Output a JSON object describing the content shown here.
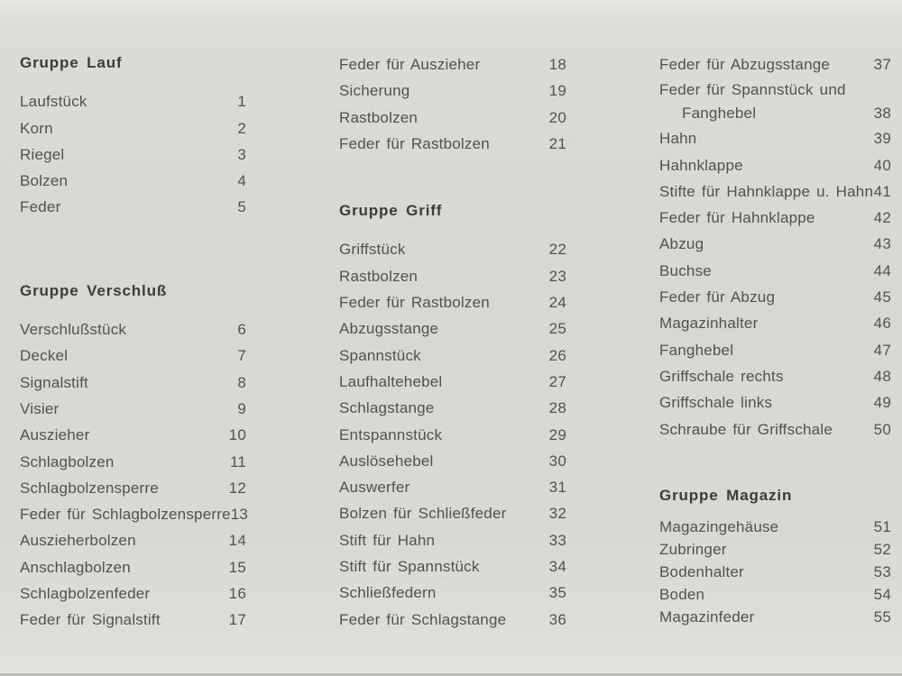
{
  "style": {
    "paper": "#d8d7d3",
    "paper_light": "#e6e5e3",
    "paper_edge": "#a9a8a6",
    "ink": "#53514d",
    "heading_ink": "#3d3b38"
  },
  "page": {
    "columns": [
      {
        "rows": [
          {
            "kind": "heading",
            "label": "Gruppe Lauf",
            "num": ""
          },
          {
            "kind": "item",
            "label": "Laufstück",
            "num": "1"
          },
          {
            "kind": "item",
            "label": "Korn",
            "num": "2"
          },
          {
            "kind": "item",
            "label": "Riegel",
            "num": "3"
          },
          {
            "kind": "item",
            "label": "Bolzen",
            "num": "4"
          },
          {
            "kind": "item",
            "label": "Feder",
            "num": "5"
          },
          {
            "kind": "heading",
            "label": "Gruppe Verschluß",
            "num": ""
          },
          {
            "kind": "item",
            "label": "Verschlußstück",
            "num": "6"
          },
          {
            "kind": "item",
            "label": "Deckel",
            "num": "7"
          },
          {
            "kind": "item",
            "label": "Signalstift",
            "num": "8"
          },
          {
            "kind": "item",
            "label": "Visier",
            "num": "9"
          },
          {
            "kind": "item",
            "label": "Auszieher",
            "num": "10"
          },
          {
            "kind": "item",
            "label": "Schlagbolzen",
            "num": "11"
          },
          {
            "kind": "item",
            "label": "Schlagbolzensperre",
            "num": "12"
          },
          {
            "kind": "item",
            "label": "Feder für Schlagbolzensperre",
            "num": "13"
          },
          {
            "kind": "item",
            "label": "Auszieherbolzen",
            "num": "14"
          },
          {
            "kind": "item",
            "label": "Anschlagbolzen",
            "num": "15"
          },
          {
            "kind": "item",
            "label": "Schlagbolzenfeder",
            "num": "16"
          },
          {
            "kind": "item",
            "label": "Feder für Signalstift",
            "num": "17"
          }
        ]
      },
      {
        "rows": [
          {
            "kind": "item",
            "label": "Feder für Auszieher",
            "num": "18"
          },
          {
            "kind": "item",
            "label": "Sicherung",
            "num": "19"
          },
          {
            "kind": "item",
            "label": "Rastbolzen",
            "num": "20"
          },
          {
            "kind": "item",
            "label": "Feder für Rastbolzen",
            "num": "21"
          },
          {
            "kind": "heading",
            "label": "Gruppe Griff",
            "num": ""
          },
          {
            "kind": "item",
            "label": "Griffstück",
            "num": "22"
          },
          {
            "kind": "item",
            "label": "Rastbolzen",
            "num": "23"
          },
          {
            "kind": "item",
            "label": "Feder für Rastbolzen",
            "num": "24"
          },
          {
            "kind": "item",
            "label": "Abzugsstange",
            "num": "25"
          },
          {
            "kind": "item",
            "label": "Spannstück",
            "num": "26"
          },
          {
            "kind": "item",
            "label": "Laufhaltehebel",
            "num": "27"
          },
          {
            "kind": "item",
            "label": "Schlagstange",
            "num": "28"
          },
          {
            "kind": "item",
            "label": "Entspannstück",
            "num": "29"
          },
          {
            "kind": "item",
            "label": "Auslösehebel",
            "num": "30"
          },
          {
            "kind": "item",
            "label": "Auswerfer",
            "num": "31"
          },
          {
            "kind": "item",
            "label": "Bolzen für Schließfeder",
            "num": "32"
          },
          {
            "kind": "item",
            "label": "Stift für Hahn",
            "num": "33"
          },
          {
            "kind": "item",
            "label": "Stift für Spannstück",
            "num": "34"
          },
          {
            "kind": "item",
            "label": "Schließfedern",
            "num": "35"
          },
          {
            "kind": "item",
            "label": "Feder für Schlagstange",
            "num": "36"
          }
        ]
      },
      {
        "rows": [
          {
            "kind": "item",
            "label": "Feder für Abzugsstange",
            "num": "37"
          },
          {
            "kind": "item-cont",
            "label": "Feder für Spannstück und",
            "num": ""
          },
          {
            "kind": "item-indent",
            "label": "Fanghebel",
            "num": "38"
          },
          {
            "kind": "item",
            "label": "Hahn",
            "num": "39"
          },
          {
            "kind": "item",
            "label": "Hahnklappe",
            "num": "40"
          },
          {
            "kind": "item",
            "label": "Stifte für Hahnklappe u. Hahn",
            "num": "41"
          },
          {
            "kind": "item",
            "label": "Feder für Hahnklappe",
            "num": "42"
          },
          {
            "kind": "item",
            "label": "Abzug",
            "num": "43"
          },
          {
            "kind": "item",
            "label": "Buchse",
            "num": "44"
          },
          {
            "kind": "item",
            "label": "Feder für Abzug",
            "num": "45"
          },
          {
            "kind": "item",
            "label": "Magazinhalter",
            "num": "46"
          },
          {
            "kind": "item",
            "label": "Fanghebel",
            "num": "47"
          },
          {
            "kind": "item",
            "label": "Griffschale rechts",
            "num": "48"
          },
          {
            "kind": "item",
            "label": "Griffschale links",
            "num": "49"
          },
          {
            "kind": "item",
            "label": "Schraube für Griffschale",
            "num": "50"
          },
          {
            "kind": "heading",
            "label": "Gruppe Magazin",
            "num": ""
          },
          {
            "kind": "item",
            "label": "Magazingehäuse",
            "num": "51"
          },
          {
            "kind": "item",
            "label": "Zubringer",
            "num": "52"
          },
          {
            "kind": "item",
            "label": "Bodenhalter",
            "num": "53"
          },
          {
            "kind": "item",
            "label": "Boden",
            "num": "54"
          },
          {
            "kind": "item",
            "label": "Magazinfeder",
            "num": "55"
          }
        ]
      }
    ]
  }
}
